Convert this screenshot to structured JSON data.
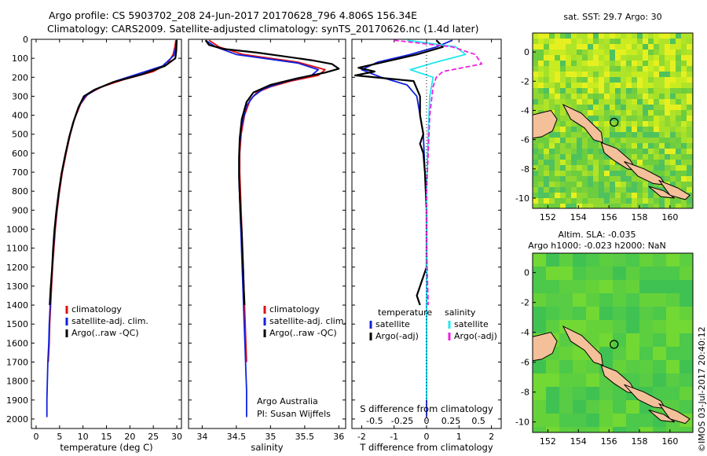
{
  "header": {
    "line1": "Argo profile: CS 5903702_208 24-Jun-2017 20170628_796 4.806S 156.34E",
    "line2": "Climatology: CARS2009. Satellite-adjusted climatology: synTS_20170626.nc (1.4d later)"
  },
  "stamp": "©IMOS 03-Jul-2017 20:40:12",
  "colors": {
    "climatology": "#e01010",
    "satellite": "#1020e0",
    "argo": "#000000",
    "sal_satellite": "#20e8f0",
    "sal_argo": "#f020e0",
    "land": "#f4c09a"
  },
  "chart_data": [
    {
      "type": "line",
      "id": "temperature",
      "xlabel": "temperature (deg C)",
      "ylim": [
        2050,
        0
      ],
      "xlim": [
        -1,
        31
      ],
      "xticks": [
        0,
        5,
        10,
        15,
        20,
        25,
        30
      ],
      "xtick_labels": [
        "0",
        "5",
        "10",
        "15",
        "20",
        "25",
        "30"
      ],
      "yticks": [
        0,
        100,
        200,
        300,
        400,
        500,
        600,
        700,
        800,
        900,
        1000,
        1100,
        1200,
        1300,
        1400,
        1500,
        1600,
        1700,
        1800,
        1900,
        2000
      ],
      "ytick_labels": [
        "0",
        "100",
        "200",
        "300",
        "400",
        "500",
        "600",
        "700",
        "800",
        "900",
        "1000",
        "1100",
        "1200",
        "1300",
        "1400",
        "1500",
        "1600",
        "1700",
        "1800",
        "1900",
        "2000"
      ],
      "legend": [
        "climatology",
        "satellite-adj. clim.",
        "Argo(..raw -QC)"
      ],
      "series": [
        {
          "name": "climatology",
          "color": "#e01010",
          "points": [
            [
              29.8,
              5
            ],
            [
              29.6,
              40
            ],
            [
              29.2,
              80
            ],
            [
              28.0,
              130
            ],
            [
              25.0,
              170
            ],
            [
              19.0,
              210
            ],
            [
              14.0,
              250
            ],
            [
              11.0,
              290
            ],
            [
              9.5,
              340
            ],
            [
              8.2,
              420
            ],
            [
              7.3,
              500
            ],
            [
              6.4,
              600
            ],
            [
              5.6,
              700
            ],
            [
              5.0,
              800
            ],
            [
              4.5,
              900
            ],
            [
              4.1,
              1000
            ],
            [
              3.8,
              1100
            ],
            [
              3.5,
              1200
            ],
            [
              3.3,
              1300
            ],
            [
              3.1,
              1400
            ],
            [
              2.9,
              1500
            ],
            [
              2.8,
              1600
            ],
            [
              2.6,
              1700
            ]
          ]
        },
        {
          "name": "satellite-adj. clim.",
          "color": "#1020e0",
          "points": [
            [
              29.9,
              5
            ],
            [
              29.8,
              40
            ],
            [
              29.4,
              85
            ],
            [
              27.0,
              140
            ],
            [
              22.0,
              180
            ],
            [
              17.0,
              220
            ],
            [
              13.0,
              260
            ],
            [
              10.5,
              300
            ],
            [
              9.2,
              350
            ],
            [
              8.0,
              430
            ],
            [
              7.1,
              510
            ],
            [
              6.3,
              600
            ],
            [
              5.5,
              700
            ],
            [
              4.9,
              800
            ],
            [
              4.4,
              900
            ],
            [
              4.0,
              1000
            ],
            [
              3.7,
              1100
            ],
            [
              3.4,
              1200
            ],
            [
              3.2,
              1300
            ],
            [
              3.0,
              1400
            ],
            [
              2.8,
              1500
            ],
            [
              2.7,
              1600
            ],
            [
              2.5,
              1700
            ],
            [
              2.4,
              1800
            ],
            [
              2.3,
              1900
            ],
            [
              2.3,
              1990
            ]
          ]
        },
        {
          "name": "Argo(..raw -QC)",
          "color": "#000000",
          "points": [
            [
              30.0,
              5
            ],
            [
              29.9,
              60
            ],
            [
              29.7,
              100
            ],
            [
              27.5,
              140
            ],
            [
              22.5,
              185
            ],
            [
              16.5,
              225
            ],
            [
              12.5,
              265
            ],
            [
              10.2,
              300
            ],
            [
              9.0,
              360
            ],
            [
              7.9,
              440
            ],
            [
              7.0,
              520
            ],
            [
              6.2,
              610
            ],
            [
              5.4,
              710
            ],
            [
              4.8,
              810
            ],
            [
              4.3,
              910
            ],
            [
              3.9,
              1010
            ],
            [
              3.6,
              1110
            ],
            [
              3.4,
              1210
            ],
            [
              3.1,
              1310
            ],
            [
              2.9,
              1400
            ]
          ]
        }
      ]
    },
    {
      "type": "line",
      "id": "salinity",
      "xlabel": "salinity",
      "ylim": [
        2050,
        0
      ],
      "xlim": [
        33.8,
        36.1
      ],
      "xticks": [
        34,
        34.5,
        35,
        35.5,
        36
      ],
      "xtick_labels": [
        "34",
        "34.5",
        "35",
        "35.5",
        "36"
      ],
      "yticks": [
        0,
        100,
        200,
        300,
        400,
        500,
        600,
        700,
        800,
        900,
        1000,
        1100,
        1200,
        1300,
        1400,
        1500,
        1600,
        1700,
        1800,
        1900,
        2000
      ],
      "legend": [
        "climatology",
        "satellite-adj. clim.",
        "Argo(..raw -QC)"
      ],
      "annotation": [
        "Argo Australia",
        "PI: Susan Wijffels"
      ],
      "series": [
        {
          "name": "climatology",
          "color": "#e01010",
          "points": [
            [
              34.1,
              5
            ],
            [
              34.25,
              40
            ],
            [
              34.6,
              80
            ],
            [
              35.4,
              120
            ],
            [
              35.8,
              160
            ],
            [
              35.7,
              190
            ],
            [
              35.3,
              220
            ],
            [
              35.0,
              250
            ],
            [
              34.8,
              280
            ],
            [
              34.7,
              320
            ],
            [
              34.62,
              400
            ],
            [
              34.57,
              500
            ],
            [
              34.55,
              600
            ],
            [
              34.55,
              700
            ],
            [
              34.56,
              800
            ],
            [
              34.57,
              900
            ],
            [
              34.58,
              1000
            ],
            [
              34.59,
              1100
            ],
            [
              34.6,
              1200
            ],
            [
              34.61,
              1300
            ],
            [
              34.62,
              1400
            ],
            [
              34.63,
              1500
            ],
            [
              34.64,
              1600
            ],
            [
              34.65,
              1700
            ]
          ]
        },
        {
          "name": "satellite-adj. clim.",
          "color": "#1020e0",
          "points": [
            [
              34.05,
              5
            ],
            [
              34.2,
              40
            ],
            [
              34.5,
              80
            ],
            [
              35.4,
              125
            ],
            [
              35.7,
              160
            ],
            [
              35.6,
              190
            ],
            [
              35.2,
              225
            ],
            [
              34.9,
              260
            ],
            [
              34.75,
              300
            ],
            [
              34.65,
              350
            ],
            [
              34.58,
              450
            ],
            [
              34.55,
              550
            ],
            [
              34.54,
              650
            ],
            [
              34.54,
              750
            ],
            [
              34.55,
              850
            ],
            [
              34.56,
              950
            ],
            [
              34.57,
              1050
            ],
            [
              34.58,
              1150
            ],
            [
              34.59,
              1250
            ],
            [
              34.6,
              1350
            ],
            [
              34.61,
              1450
            ],
            [
              34.62,
              1550
            ],
            [
              34.63,
              1650
            ],
            [
              34.64,
              1750
            ],
            [
              34.65,
              1850
            ],
            [
              34.65,
              1990
            ]
          ]
        },
        {
          "name": "Argo(..raw -QC)",
          "color": "#000000",
          "points": [
            [
              34.05,
              5
            ],
            [
              34.1,
              30
            ],
            [
              34.3,
              50
            ],
            [
              34.8,
              70
            ],
            [
              35.2,
              90
            ],
            [
              35.6,
              110
            ],
            [
              35.9,
              130
            ],
            [
              36.0,
              155
            ],
            [
              35.8,
              175
            ],
            [
              35.4,
              205
            ],
            [
              35.0,
              240
            ],
            [
              34.75,
              280
            ],
            [
              34.65,
              330
            ],
            [
              34.58,
              420
            ],
            [
              34.55,
              520
            ],
            [
              34.54,
              620
            ],
            [
              34.54,
              720
            ],
            [
              34.55,
              820
            ],
            [
              34.56,
              920
            ],
            [
              34.58,
              1020
            ],
            [
              34.59,
              1120
            ],
            [
              34.6,
              1220
            ],
            [
              34.61,
              1320
            ],
            [
              34.62,
              1400
            ]
          ]
        }
      ]
    },
    {
      "type": "line",
      "id": "difference",
      "xlabel": "T difference from climatology",
      "xlabel_top": "S difference from climatology",
      "ylim": [
        2050,
        0
      ],
      "xlim": [
        -2.3,
        2.3
      ],
      "xticks": [
        -2,
        -1,
        0,
        1,
        2
      ],
      "xtick_labels": [
        "-2",
        "-1",
        "0",
        "1",
        "2"
      ],
      "s_xticks": [
        -1.6,
        -0.75,
        0,
        0.75,
        1.6
      ],
      "s_xtick_labels": [
        "-0.5",
        "-0.25",
        "0",
        "0.25",
        "0.5"
      ],
      "yticks": [
        0,
        100,
        200,
        300,
        400,
        500,
        600,
        700,
        800,
        900,
        1000,
        1100,
        1200,
        1300,
        1400,
        1500,
        1600,
        1700,
        1800,
        1900,
        2000
      ],
      "legend_titles": [
        "temperature",
        "salinity"
      ],
      "legend": [
        "satellite",
        "Argo(-adj)",
        "satellite",
        "Argo(-adj)"
      ],
      "series": [
        {
          "name": "satellite",
          "color": "#1020e0",
          "points": [
            [
              0.8,
              5
            ],
            [
              0.3,
              40
            ],
            [
              -0.5,
              80
            ],
            [
              -1.5,
              120
            ],
            [
              -2.0,
              160
            ],
            [
              -1.4,
              200
            ],
            [
              -0.6,
              240
            ],
            [
              -0.3,
              300
            ],
            [
              -0.2,
              400
            ],
            [
              -0.1,
              500
            ],
            [
              -0.05,
              700
            ],
            [
              0,
              900
            ],
            [
              0,
              1200
            ],
            [
              0,
              1500
            ],
            [
              0,
              1800
            ],
            [
              0,
              1990
            ]
          ]
        },
        {
          "name": "Argo(-adj)",
          "color": "#000000",
          "points": [
            [
              0.3,
              5
            ],
            [
              0.5,
              40
            ],
            [
              -0.3,
              80
            ],
            [
              -2.1,
              150
            ],
            [
              -1.6,
              170
            ],
            [
              -2.2,
              190
            ],
            [
              -0.4,
              220
            ],
            [
              -0.2,
              300
            ],
            [
              -0.2,
              400
            ],
            [
              -0.1,
              500
            ],
            [
              -0.2,
              550
            ],
            [
              -0.1,
              600
            ],
            [
              -0.05,
              700
            ],
            [
              0,
              900
            ],
            [
              0,
              1200
            ],
            [
              -0.3,
              1350
            ],
            [
              -0.2,
              1400
            ]
          ]
        },
        {
          "name": "satellite",
          "color": "#20e8f0",
          "points": [
            [
              -0.6,
              5
            ],
            [
              0.9,
              40
            ],
            [
              1.2,
              80
            ],
            [
              0.3,
              120
            ],
            [
              -0.5,
              160
            ],
            [
              0.2,
              200
            ],
            [
              0.1,
              300
            ],
            [
              0.05,
              500
            ],
            [
              0,
              800
            ],
            [
              0,
              1200
            ],
            [
              0,
              1600
            ],
            [
              0,
              1900
            ]
          ]
        },
        {
          "name": "Argo(-adj)",
          "color": "#f020e0",
          "points": [
            [
              -1.0,
              5
            ],
            [
              0.8,
              40
            ],
            [
              1.5,
              80
            ],
            [
              1.7,
              130
            ],
            [
              0.5,
              170
            ],
            [
              0.3,
              200
            ],
            [
              0.2,
              250
            ],
            [
              0.1,
              400
            ],
            [
              0.05,
              600
            ],
            [
              0,
              800
            ],
            [
              0,
              1100
            ],
            [
              0.05,
              1400
            ]
          ]
        }
      ]
    },
    {
      "type": "heatmap",
      "id": "sst-map",
      "title": "sat. SST: 29.7 Argo: 30",
      "xlim": [
        151,
        161.5
      ],
      "ylim": [
        -10.7,
        1.3
      ],
      "xticks": [
        152,
        154,
        156,
        158,
        160
      ],
      "xtick_labels": [
        "152",
        "154",
        "156",
        "158",
        "160"
      ],
      "yticks": [
        0,
        -2,
        -4,
        -6,
        -8,
        -10
      ],
      "ytick_labels": [
        "0",
        "-2",
        "-4",
        "-6",
        "-8",
        "-10"
      ],
      "argo_position": [
        156.34,
        -4.806
      ]
    },
    {
      "type": "heatmap",
      "id": "sla-map",
      "title_line1": "Altim. SLA: -0.035",
      "title_line2": "Argo h1000: -0.023 h2000: NaN",
      "xlim": [
        151,
        161.5
      ],
      "ylim": [
        -10.7,
        1.3
      ],
      "xticks": [
        152,
        154,
        156,
        158,
        160
      ],
      "xtick_labels": [
        "152",
        "154",
        "156",
        "158",
        "160"
      ],
      "yticks": [
        0,
        -2,
        -4,
        -6,
        -8,
        -10
      ],
      "ytick_labels": [
        "0",
        "-2",
        "-4",
        "-6",
        "-8",
        "-10"
      ],
      "argo_position": [
        156.34,
        -4.806
      ]
    }
  ]
}
